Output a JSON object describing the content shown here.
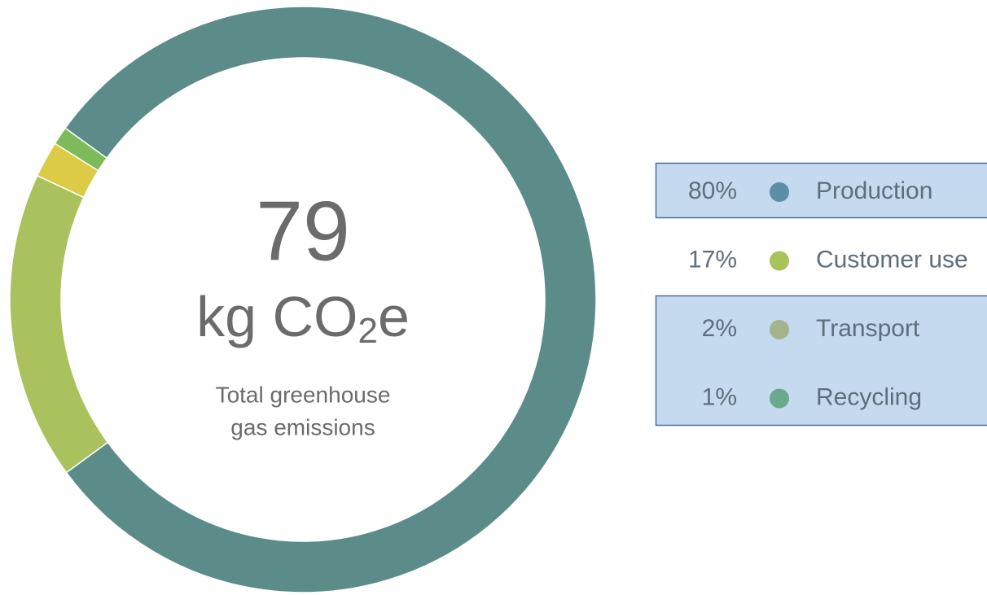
{
  "chart_data": {
    "type": "pie",
    "center_value": "79",
    "unit": [
      "kg CO",
      "2",
      "e"
    ],
    "description": [
      "Total greenhouse",
      "gas emissions"
    ],
    "categories": [
      "Production",
      "Customer use",
      "Transport",
      "Recycling"
    ],
    "values": [
      80,
      17,
      2,
      1
    ],
    "value_labels": [
      "80%",
      "17%",
      "2%",
      "1%"
    ],
    "colors": [
      "#5b8c89",
      "#a9c25d",
      "#dccb47",
      "#7dbb5a"
    ],
    "legend_colors": [
      "#5a8fa6",
      "#a6c45a",
      "#a3b48a",
      "#6aaa8c"
    ]
  }
}
